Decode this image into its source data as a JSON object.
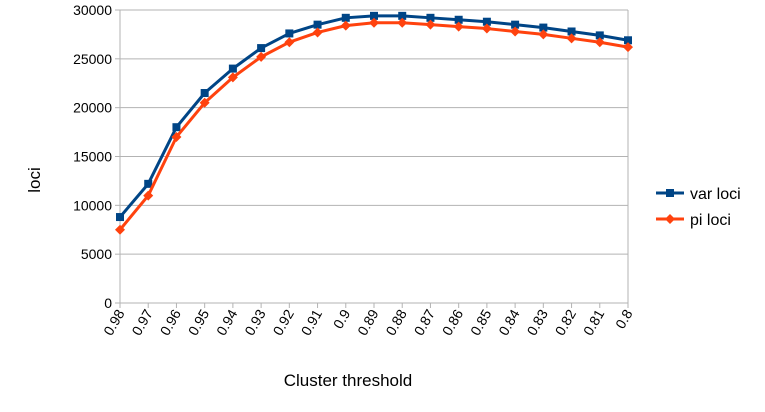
{
  "chart_data": {
    "type": "line",
    "title": "",
    "xlabel": "Cluster threshold",
    "ylabel": "loci",
    "categories": [
      "0.98",
      "0.97",
      "0.96",
      "0.95",
      "0.94",
      "0.93",
      "0.92",
      "0.91",
      "0.9",
      "0.89",
      "0.88",
      "0.87",
      "0.86",
      "0.85",
      "0.84",
      "0.83",
      "0.82",
      "0.81",
      "0.8"
    ],
    "ylim": [
      0,
      30000
    ],
    "yticks": [
      0,
      5000,
      10000,
      15000,
      20000,
      25000,
      30000
    ],
    "grid": "horizontal",
    "legend_position": "right",
    "series": [
      {
        "name": "var loci",
        "color": "#004586",
        "marker": "square",
        "values": [
          8800,
          12200,
          18000,
          21500,
          24000,
          26100,
          27600,
          28500,
          29200,
          29400,
          29400,
          29200,
          29000,
          28800,
          28500,
          28200,
          27800,
          27400,
          26900
        ]
      },
      {
        "name": "pi loci",
        "color": "#ff420e",
        "marker": "diamond",
        "values": [
          7500,
          11000,
          17000,
          20500,
          23100,
          25200,
          26700,
          27700,
          28400,
          28700,
          28700,
          28500,
          28300,
          28100,
          27800,
          27500,
          27100,
          26700,
          26200
        ]
      }
    ]
  }
}
